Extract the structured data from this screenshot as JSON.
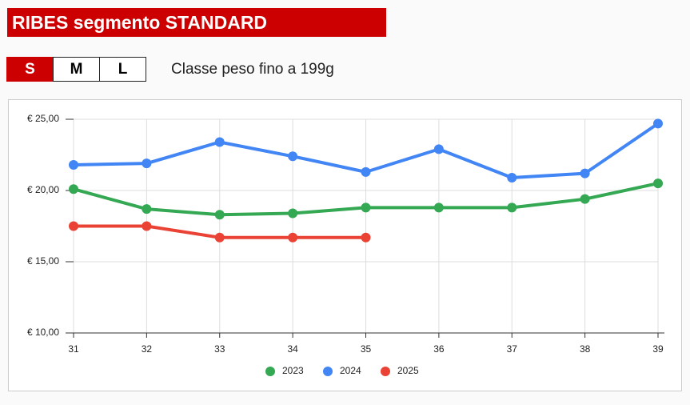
{
  "header": {
    "title": "RIBES segmento STANDARD"
  },
  "tabs": [
    "S",
    "M",
    "L"
  ],
  "active_tab": 0,
  "subtitle": "Classe peso fino a 199g",
  "chart_data": {
    "type": "line",
    "categories": [
      "31",
      "32",
      "33",
      "34",
      "35",
      "36",
      "37",
      "38",
      "39"
    ],
    "series": [
      {
        "name": "2023",
        "color": "#34a853",
        "values": [
          20.1,
          18.7,
          18.3,
          18.4,
          18.8,
          18.8,
          18.8,
          19.4,
          20.5
        ]
      },
      {
        "name": "2024",
        "color": "#4285f4",
        "values": [
          21.8,
          21.9,
          23.4,
          22.4,
          21.3,
          22.9,
          20.9,
          21.2,
          24.7
        ]
      },
      {
        "name": "2025",
        "color": "#ea4335",
        "values": [
          17.5,
          17.5,
          16.7,
          16.7,
          16.7,
          null,
          null,
          null,
          null
        ]
      }
    ],
    "ylim": [
      10,
      25
    ],
    "yticks": [
      {
        "value": 10,
        "label": "€ 10,00"
      },
      {
        "value": 15,
        "label": "€ 15,00"
      },
      {
        "value": 20,
        "label": "€ 20,00"
      },
      {
        "value": 25,
        "label": "€ 25,00"
      }
    ],
    "grid": true,
    "legend": "bottom"
  }
}
